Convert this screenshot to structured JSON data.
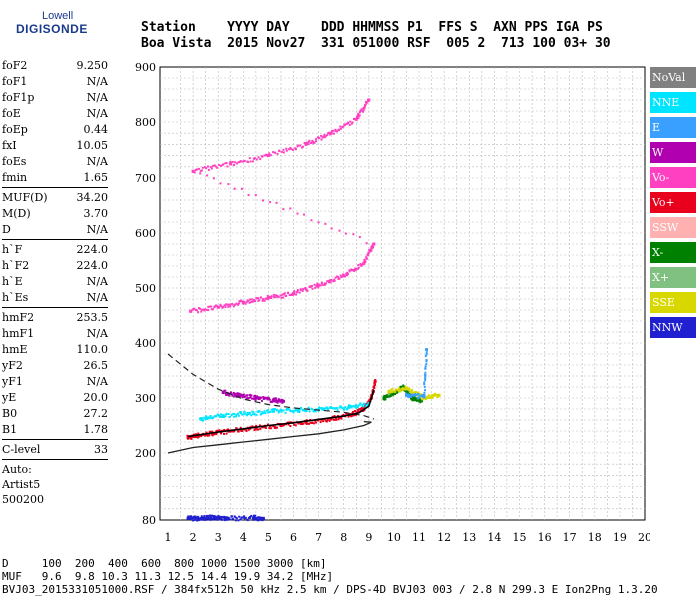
{
  "logo": {
    "line1": "Lowell",
    "line2": "DIGISONDE"
  },
  "header": {
    "line1": "Station    YYYY DAY    DDD HHMMSS P1  FFS S  AXN PPS IGA PS",
    "line2": "Boa Vista  2015 Nov27  331 051000 RSF  005 2  713 100 03+ 30"
  },
  "params": [
    [
      {
        "k": "foF2",
        "v": "9.250"
      },
      {
        "k": "foF1",
        "v": "N/A"
      },
      {
        "k": "foF1p",
        "v": "N/A"
      },
      {
        "k": "foE",
        "v": "N/A"
      },
      {
        "k": "foEp",
        "v": "0.44"
      },
      {
        "k": "fxI",
        "v": "10.05"
      },
      {
        "k": "foEs",
        "v": "N/A"
      },
      {
        "k": "fmin",
        "v": "1.65"
      }
    ],
    [
      {
        "k": "MUF(D)",
        "v": "34.20"
      },
      {
        "k": "M(D)",
        "v": "3.70"
      },
      {
        "k": "D",
        "v": "N/A"
      }
    ],
    [
      {
        "k": "h`F",
        "v": "224.0"
      },
      {
        "k": "h`F2",
        "v": "224.0"
      },
      {
        "k": "h`E",
        "v": "N/A"
      },
      {
        "k": "h`Es",
        "v": "N/A"
      }
    ],
    [
      {
        "k": "hmF2",
        "v": "253.5"
      },
      {
        "k": "hmF1",
        "v": "N/A"
      },
      {
        "k": "hmE",
        "v": "110.0"
      },
      {
        "k": "yF2",
        "v": "26.5"
      },
      {
        "k": "yF1",
        "v": "N/A"
      },
      {
        "k": "yE",
        "v": "20.0"
      },
      {
        "k": "B0",
        "v": "27.2"
      },
      {
        "k": "B1",
        "v": "1.78"
      }
    ],
    [
      {
        "k": "C-level",
        "v": "33"
      }
    ]
  ],
  "auto": {
    "l1": "Auto:",
    "l2": "Artist5",
    "l3": "500200"
  },
  "legend": [
    {
      "label": "NoVal",
      "color": "#808080"
    },
    {
      "label": "NNE",
      "color": "#00e5ff"
    },
    {
      "label": "E",
      "color": "#3aa0ff"
    },
    {
      "label": "W",
      "color": "#b000b0"
    },
    {
      "label": "Vo-",
      "color": "#ff40c0"
    },
    {
      "label": "Vo+",
      "color": "#e8001c"
    },
    {
      "label": "SSW",
      "color": "#ffb0b0"
    },
    {
      "label": "X-",
      "color": "#008000"
    },
    {
      "label": "X+",
      "color": "#80c080"
    },
    {
      "label": "SSE",
      "color": "#d8d800"
    },
    {
      "label": "NNW",
      "color": "#2020d0"
    }
  ],
  "bottom": {
    "line1": "D     100  200  400  600  800 1000 1500 3000 [km]",
    "line2": "MUF   9.6  9.8 10.3 11.3 12.5 14.4 19.9 34.2 [MHz]",
    "line3": "BVJ03_2015331051000.RSF / 384fx512h 50 kHz 2.5 km / DPS-4D BVJ03 003 / 2.8 N 299.3 E Ion2Png 1.3.20"
  },
  "chart_data": {
    "type": "scatter",
    "xlim": [
      1,
      20
    ],
    "xticks": [
      1,
      2,
      3,
      4,
      5,
      6,
      7,
      8,
      9,
      10,
      11,
      12,
      13,
      14,
      15,
      16,
      17,
      18,
      19,
      20
    ],
    "ylim": [
      80,
      900
    ],
    "ylabels": [
      80,
      200,
      300,
      400,
      500,
      600,
      700,
      800,
      900
    ],
    "grid": true,
    "series": [
      {
        "name": "Vo+",
        "color": "#e8001c",
        "points": [
          [
            1.8,
            228
          ],
          [
            2.2,
            232
          ],
          [
            2.8,
            236
          ],
          [
            3.5,
            240
          ],
          [
            4.5,
            246
          ],
          [
            5.5,
            250
          ],
          [
            6.5,
            256
          ],
          [
            7.5,
            262
          ],
          [
            8.3,
            270
          ],
          [
            8.8,
            280
          ],
          [
            9.1,
            300
          ],
          [
            9.25,
            330
          ]
        ]
      },
      {
        "name": "NNE",
        "color": "#00e5ff",
        "points": [
          [
            2.3,
            262
          ],
          [
            3.2,
            268
          ],
          [
            4.2,
            272
          ],
          [
            5.2,
            276
          ],
          [
            6.2,
            278
          ],
          [
            7.2,
            280
          ],
          [
            8.2,
            283
          ],
          [
            9.0,
            290
          ]
        ]
      },
      {
        "name": "W",
        "color": "#b000b0",
        "points": [
          [
            3.2,
            310
          ],
          [
            3.8,
            305
          ],
          [
            4.5,
            300
          ],
          [
            5.2,
            296
          ],
          [
            5.6,
            294
          ]
        ]
      },
      {
        "name": "Vo-",
        "color": "#ff40c0",
        "points": [
          [
            1.9,
            458
          ],
          [
            3.0,
            465
          ],
          [
            4.0,
            474
          ],
          [
            5.0,
            482
          ],
          [
            6.0,
            490
          ],
          [
            7.0,
            505
          ],
          [
            8.0,
            522
          ],
          [
            8.8,
            545
          ],
          [
            9.2,
            580
          ],
          [
            2.0,
            712
          ],
          [
            3.5,
            725
          ],
          [
            5.0,
            740
          ],
          [
            6.5,
            760
          ],
          [
            7.5,
            780
          ],
          [
            8.5,
            805
          ],
          [
            9.0,
            840
          ]
        ]
      },
      {
        "name": "X-",
        "color": "#008000",
        "points": [
          [
            9.6,
            300
          ],
          [
            10.0,
            310
          ],
          [
            10.4,
            320
          ],
          [
            10.7,
            300
          ],
          [
            11.1,
            295
          ]
        ]
      },
      {
        "name": "SSE",
        "color": "#d8d800",
        "points": [
          [
            9.8,
            312
          ],
          [
            10.5,
            318
          ],
          [
            11.2,
            300
          ],
          [
            11.8,
            305
          ]
        ]
      },
      {
        "name": "E",
        "color": "#3aa0ff",
        "points": [
          [
            10.5,
            305
          ],
          [
            11.2,
            302
          ],
          [
            11.3,
            388
          ]
        ]
      },
      {
        "name": "NNW",
        "color": "#2020d0",
        "points": [
          [
            1.8,
            83
          ],
          [
            2.2,
            83
          ],
          [
            2.6,
            84
          ],
          [
            3.0,
            84
          ],
          [
            3.4,
            83
          ],
          [
            4.4,
            84
          ],
          [
            4.8,
            83
          ]
        ]
      }
    ],
    "traces": {
      "profile": [
        [
          1,
          200
        ],
        [
          2,
          210
        ],
        [
          3,
          215
        ],
        [
          4,
          220
        ],
        [
          5,
          225
        ],
        [
          6,
          230
        ],
        [
          7,
          235
        ],
        [
          8,
          242
        ],
        [
          8.8,
          250
        ],
        [
          9.1,
          256
        ],
        [
          8.8,
          257
        ]
      ],
      "extrapolated": [
        [
          1,
          380
        ],
        [
          2,
          343
        ],
        [
          3,
          316
        ],
        [
          4,
          298
        ],
        [
          5,
          288
        ],
        [
          6,
          282
        ],
        [
          7,
          278
        ],
        [
          8,
          274
        ],
        [
          8.8,
          268
        ],
        [
          9.2,
          262
        ]
      ],
      "fitted": [
        [
          1.8,
          230
        ],
        [
          3,
          238
        ],
        [
          4,
          244
        ],
        [
          5,
          250
        ],
        [
          6,
          255
        ],
        [
          7,
          261
        ],
        [
          8,
          267
        ],
        [
          8.6,
          273
        ],
        [
          9.0,
          285
        ],
        [
          9.2,
          315
        ]
      ]
    }
  }
}
